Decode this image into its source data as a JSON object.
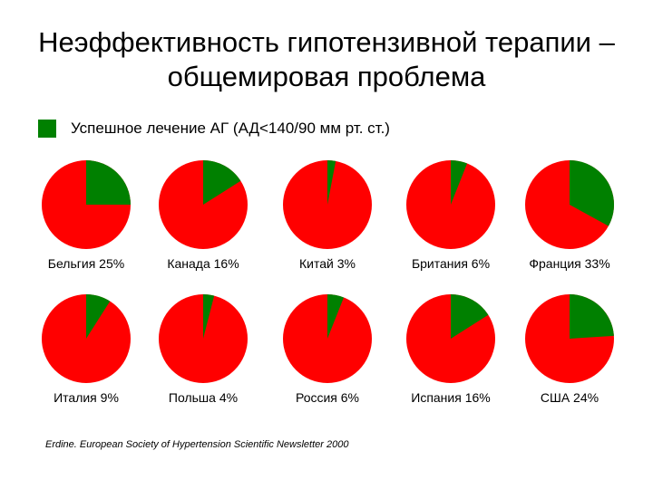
{
  "title": {
    "line1": "Неэффективность гипотензивной терапии –",
    "line2": "общемировая проблема"
  },
  "legend": {
    "label": "Успешное лечение АГ (АД<140/90 мм рт. ст.)"
  },
  "colors": {
    "success": "#008000",
    "rest": "#ff0000"
  },
  "chart_data": {
    "type": "pie",
    "series_name": "Успешное лечение АГ (АД<140/90 мм рт. ст.)",
    "categories": [
      "Бельгия",
      "Канада",
      "Китай",
      "Британия",
      "Франция",
      "Италия",
      "Польша",
      "Россия",
      "Испания",
      "США"
    ],
    "values": [
      25,
      16,
      3,
      6,
      33,
      9,
      4,
      6,
      16,
      24
    ],
    "labels": [
      "Бельгия 25%",
      "Канада 16%",
      "Китай 3%",
      "Британия 6%",
      "Франция 33%",
      "Италия 9%",
      "Польша 4%",
      "Россия 6%",
      "Испания 16%",
      "США 24%"
    ],
    "unit": "%"
  },
  "source": "Erdine. European Society of Hypertension Scientific Newsletter 2000"
}
